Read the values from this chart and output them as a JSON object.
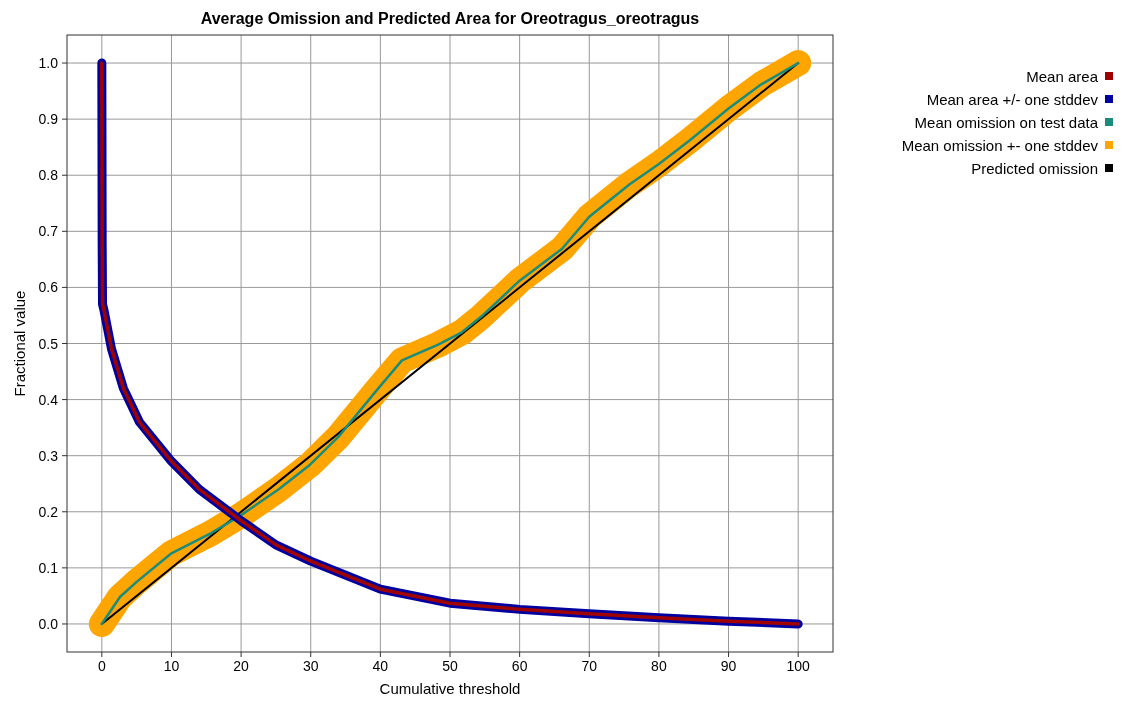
{
  "chart_data": {
    "type": "line",
    "title": "Average Omission and Predicted Area for Oreotragus_oreotragus",
    "xlabel": "Cumulative threshold",
    "ylabel": "Fractional value",
    "xlim": [
      -5,
      105
    ],
    "xticks": [
      0,
      10,
      20,
      30,
      40,
      50,
      60,
      70,
      80,
      90,
      100
    ],
    "ylim": [
      -0.05,
      1.05
    ],
    "yticks": [
      {
        "value": 0,
        "label": "0.0"
      },
      0.1,
      0.2,
      0.3,
      0.4,
      0.5,
      0.6,
      0.7,
      0.8,
      0.9,
      {
        "value": 1,
        "label": "1.0"
      }
    ],
    "grid": true,
    "legend": "top right",
    "series": [
      {
        "name": "Mean area",
        "color": "#a00000",
        "x": [
          0,
          0.05,
          0.1,
          0.3,
          1.4,
          3.1,
          5.4,
          10,
          14,
          20,
          25,
          30,
          40,
          50,
          60,
          70,
          80,
          90,
          100
        ],
        "values": [
          1.0,
          0.68,
          0.57,
          0.56,
          0.49,
          0.42,
          0.36,
          0.29,
          0.24,
          0.184,
          0.141,
          0.112,
          0.062,
          0.037,
          0.026,
          0.018,
          0.011,
          0.005,
          0
        ]
      },
      {
        "name": "Mean area +/- one stddev",
        "color": "#0000a0",
        "x": [
          0,
          0.05,
          0.1,
          0.3,
          1.4,
          3.1,
          5.4,
          10,
          14,
          20,
          25,
          30,
          40,
          50,
          60,
          70,
          80,
          90,
          100
        ],
        "values": [
          1.0,
          0.68,
          0.57,
          0.56,
          0.49,
          0.42,
          0.36,
          0.29,
          0.24,
          0.184,
          0.141,
          0.112,
          0.062,
          0.037,
          0.026,
          0.018,
          0.011,
          0.005,
          0
        ]
      },
      {
        "name": "Mean omission on test data",
        "color": "#1a8c7c",
        "x": [
          0,
          2.6,
          5,
          10,
          15.7,
          20,
          25.4,
          29.9,
          34,
          39.7,
          43.1,
          48.3,
          51.7,
          54.5,
          60,
          66.1,
          70,
          75.8,
          80,
          84.4,
          90,
          94.7,
          100
        ],
        "values": [
          0,
          0.048,
          0.075,
          0.126,
          0.162,
          0.194,
          0.24,
          0.284,
          0.334,
          0.42,
          0.47,
          0.498,
          0.52,
          0.548,
          0.612,
          0.669,
          0.726,
          0.784,
          0.82,
          0.862,
          0.919,
          0.962,
          1.0
        ]
      },
      {
        "name": "Mean omission +- one stddev",
        "color": "#ffa500",
        "x": [
          0,
          2.6,
          5,
          10,
          15.7,
          20,
          25.4,
          29.9,
          34,
          39.7,
          43.1,
          48.3,
          51.7,
          54.5,
          60,
          66.1,
          70,
          75.8,
          80,
          84.4,
          90,
          94.7,
          100
        ],
        "values": [
          0,
          0.048,
          0.075,
          0.126,
          0.162,
          0.194,
          0.24,
          0.284,
          0.334,
          0.42,
          0.47,
          0.498,
          0.52,
          0.548,
          0.612,
          0.669,
          0.726,
          0.784,
          0.82,
          0.862,
          0.919,
          0.962,
          1.0
        ]
      },
      {
        "name": "Predicted omission",
        "color": "#000000",
        "x": [
          0,
          100
        ],
        "values": [
          0,
          1
        ]
      }
    ]
  }
}
